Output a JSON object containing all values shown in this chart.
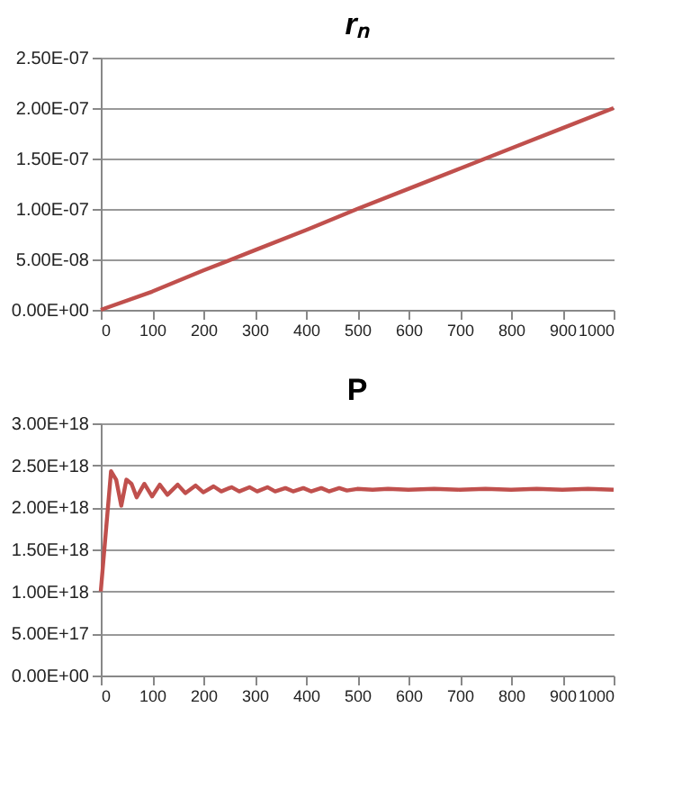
{
  "chart_data": [
    {
      "type": "line",
      "title": "rₙ",
      "x": [
        0,
        100,
        200,
        300,
        400,
        500,
        600,
        700,
        800,
        900,
        1000
      ],
      "series": [
        {
          "color": "#c0504d",
          "values": [
            0,
            1.8e-08,
            3.9e-08,
            5.9e-08,
            7.9e-08,
            1e-07,
            1.2e-07,
            1.4e-07,
            1.6e-07,
            1.8e-07,
            2e-07
          ]
        }
      ],
      "xlim": [
        0,
        1000
      ],
      "xticks": [
        0,
        100,
        200,
        300,
        400,
        500,
        600,
        700,
        800,
        900,
        1000
      ],
      "ylim": [
        0,
        2.5e-07
      ],
      "yticks": [
        {
          "value": 0,
          "label": "0.00E+00"
        },
        {
          "value": 5e-08,
          "label": "5.00E-08"
        },
        {
          "value": 1e-07,
          "label": "1.00E-07"
        },
        {
          "value": 1.5e-07,
          "label": "1.50E-07"
        },
        {
          "value": 2e-07,
          "label": "2.00E-07"
        },
        {
          "value": 2.5e-07,
          "label": "2.50E-07"
        }
      ],
      "grid": "y"
    },
    {
      "type": "line",
      "title": "P",
      "x": [
        0,
        20,
        30,
        40,
        50,
        60,
        70,
        85,
        100,
        115,
        130,
        150,
        165,
        185,
        200,
        220,
        235,
        255,
        270,
        290,
        305,
        325,
        340,
        360,
        375,
        395,
        410,
        430,
        445,
        465,
        480,
        500,
        530,
        560,
        600,
        650,
        700,
        750,
        800,
        850,
        900,
        950,
        1000
      ],
      "series": [
        {
          "color": "#c0504d",
          "values": [
            1e+18,
            2.43e+18,
            2.33e+18,
            2.02e+18,
            2.33e+18,
            2.28e+18,
            2.12e+18,
            2.28e+18,
            2.13e+18,
            2.27e+18,
            2.15e+18,
            2.27e+18,
            2.17e+18,
            2.26e+18,
            2.18e+18,
            2.25e+18,
            2.19e+18,
            2.24e+18,
            2.19e+18,
            2.24e+18,
            2.19e+18,
            2.24e+18,
            2.19e+18,
            2.23e+18,
            2.19e+18,
            2.23e+18,
            2.19e+18,
            2.23e+18,
            2.19e+18,
            2.23e+18,
            2.2e+18,
            2.22e+18,
            2.21e+18,
            2.22e+18,
            2.21e+18,
            2.22e+18,
            2.21e+18,
            2.22e+18,
            2.21e+18,
            2.22e+18,
            2.21e+18,
            2.22e+18,
            2.21e+18
          ]
        }
      ],
      "xlim": [
        0,
        1000
      ],
      "xticks": [
        0,
        100,
        200,
        300,
        400,
        500,
        600,
        700,
        800,
        900,
        1000
      ],
      "ylim": [
        0,
        3e+18
      ],
      "yticks": [
        {
          "value": 0,
          "label": "0.00E+00"
        },
        {
          "value": 5e+17,
          "label": "5.00E+17"
        },
        {
          "value": 1e+18,
          "label": "1.00E+18"
        },
        {
          "value": 1.5e+18,
          "label": "1.50E+18"
        },
        {
          "value": 2e+18,
          "label": "2.00E+18"
        },
        {
          "value": 2.5e+18,
          "label": "2.50E+18"
        },
        {
          "value": 3e+18,
          "label": "3.00E+18"
        }
      ],
      "grid": "y"
    }
  ]
}
